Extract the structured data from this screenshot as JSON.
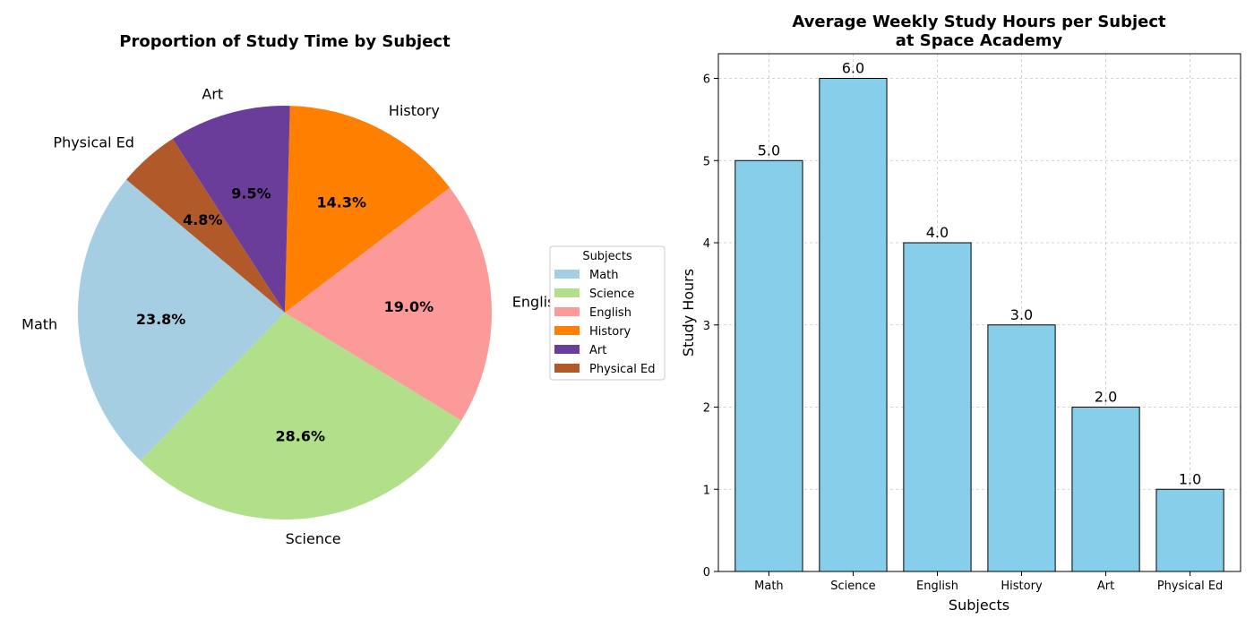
{
  "chart_data": [
    {
      "type": "pie",
      "title": "Proportion of Study Time by Subject",
      "categories": [
        "Math",
        "Science",
        "English",
        "History",
        "Art",
        "Physical Ed"
      ],
      "values": [
        5,
        6,
        4,
        3,
        2,
        1
      ],
      "percent_labels": [
        "23.8%",
        "28.6%",
        "19.0%",
        "14.3%",
        "9.5%",
        "4.8%"
      ],
      "colors": [
        "#a6cee3",
        "#b2df8a",
        "#fb9a99",
        "#ff7f00",
        "#6a3d9a",
        "#b15928"
      ],
      "start_angle_deg": 140,
      "legend": {
        "title": "Subjects",
        "placement": "center-right",
        "entries": [
          "Math",
          "Science",
          "English",
          "History",
          "Art",
          "Physical Ed"
        ]
      }
    },
    {
      "type": "bar",
      "title": "Average Weekly Study Hours per Subject\nat Space Academy",
      "categories": [
        "Math",
        "Science",
        "English",
        "History",
        "Art",
        "Physical Ed"
      ],
      "values": [
        5,
        6,
        4,
        3,
        2,
        1
      ],
      "value_labels": [
        "5.0",
        "6.0",
        "4.0",
        "3.0",
        "2.0",
        "1.0"
      ],
      "xlabel": "Subjects",
      "ylabel": "Study Hours",
      "ylim": [
        0,
        6.3
      ],
      "yticks": [
        0,
        1,
        2,
        3,
        4,
        5,
        6
      ],
      "bar_color": "#87ceeb",
      "edge_color": "#000000",
      "grid": true
    }
  ]
}
